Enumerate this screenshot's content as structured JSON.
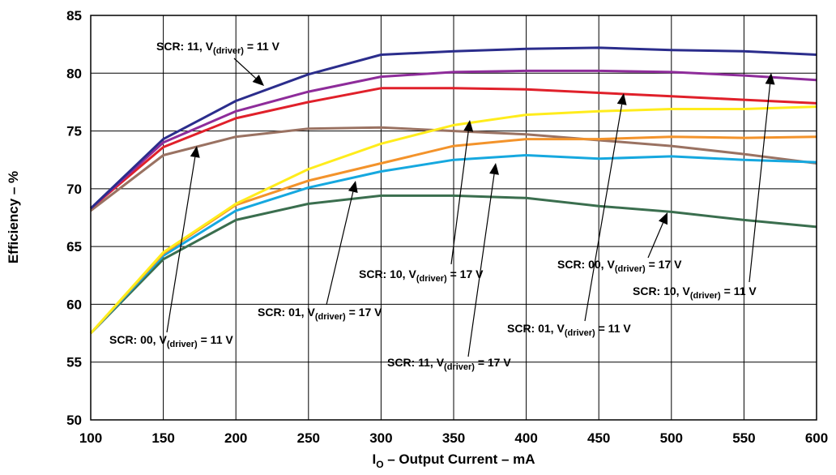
{
  "chart_data": {
    "type": "line",
    "title": "",
    "xlabel": {
      "main": "I",
      "sub": "O",
      "rest": " – Output Current – mA"
    },
    "ylabel": "Efficiency – %",
    "xlim": [
      100,
      600
    ],
    "ylim": [
      50,
      85
    ],
    "x_ticks": [
      "100",
      "150",
      "200",
      "250",
      "300",
      "350",
      "400",
      "450",
      "500",
      "550",
      "600"
    ],
    "y_ticks": [
      "50",
      "55",
      "60",
      "65",
      "70",
      "75",
      "80",
      "85"
    ],
    "grid": true,
    "x": [
      100,
      150,
      200,
      250,
      300,
      350,
      400,
      450,
      500,
      550,
      600
    ],
    "series": [
      {
        "name": "SCR: 11, V(driver) = 11 V",
        "color": "#2b2d8c",
        "values": [
          68.3,
          74.3,
          77.6,
          79.9,
          81.6,
          81.9,
          82.1,
          82.2,
          82.0,
          81.9,
          81.6
        ]
      },
      {
        "name": "SCR: 10, V(driver) = 11 V",
        "color": "#8e2c9a",
        "values": [
          68.3,
          74.0,
          76.7,
          78.4,
          79.7,
          80.1,
          80.2,
          80.2,
          80.1,
          79.8,
          79.4
        ]
      },
      {
        "name": "SCR: 01, V(driver) = 11 V",
        "color": "#e0202a",
        "values": [
          68.3,
          73.6,
          76.1,
          77.5,
          78.7,
          78.7,
          78.6,
          78.3,
          78.0,
          77.7,
          77.4
        ]
      },
      {
        "name": "SCR: 00, V(driver) = 11 V",
        "color": "#9a7262",
        "values": [
          68.1,
          72.9,
          74.5,
          75.2,
          75.3,
          75.0,
          74.7,
          74.2,
          73.7,
          73.0,
          72.2
        ]
      },
      {
        "name": "SCR: 11, V(driver) = 17 V",
        "color": "#ffec1c",
        "values": [
          57.5,
          64.5,
          68.7,
          71.7,
          73.9,
          75.5,
          76.4,
          76.7,
          76.9,
          76.9,
          77.1
        ]
      },
      {
        "name": "SCR: 10, V(driver) = 17 V",
        "color": "#f3932b",
        "values": [
          57.5,
          64.4,
          68.6,
          70.7,
          72.2,
          73.7,
          74.3,
          74.3,
          74.5,
          74.4,
          74.5
        ]
      },
      {
        "name": "SCR: 01, V(driver) = 17 V",
        "color": "#16a8df",
        "values": [
          57.5,
          64.2,
          68.1,
          70.1,
          71.5,
          72.5,
          72.9,
          72.6,
          72.8,
          72.5,
          72.3
        ]
      },
      {
        "name": "SCR: 00, V(driver) = 17 V",
        "color": "#3a6e4e",
        "values": [
          57.5,
          63.9,
          67.3,
          68.7,
          69.4,
          69.4,
          69.2,
          68.5,
          68.0,
          67.3,
          66.7
        ]
      }
    ],
    "annotations": [
      {
        "pre": "SCR: 11, V",
        "sub": "(driver)",
        "post": " = 11 V"
      },
      {
        "pre": "SCR: 10, V",
        "sub": "(driver)",
        "post": " = 17 V"
      },
      {
        "pre": "SCR: 00, V",
        "sub": "(driver)",
        "post": " = 17 V"
      },
      {
        "pre": "SCR: 10, V",
        "sub": "(driver)",
        "post": " = 11 V"
      },
      {
        "pre": "SCR: 01, V",
        "sub": "(driver)",
        "post": " = 17 V"
      },
      {
        "pre": "SCR: 01, V",
        "sub": "(driver)",
        "post": " = 11 V"
      },
      {
        "pre": "SCR: 00, V",
        "sub": "(driver)",
        "post": " = 11 V"
      },
      {
        "pre": "SCR: 11, V",
        "sub": "(driver)",
        "post": " = 17 V"
      }
    ]
  }
}
